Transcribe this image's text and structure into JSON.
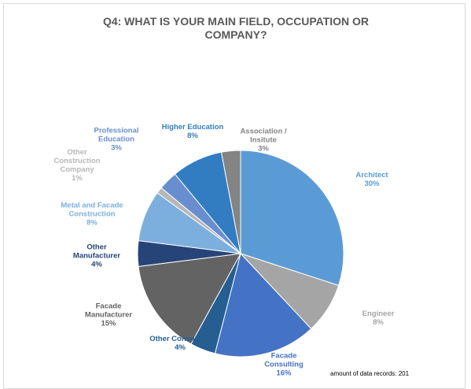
{
  "chart_data": {
    "type": "pie",
    "title": "Q4: WHAT IS YOUR MAIN FIELD, OCCUPATION OR COMPANY?",
    "categories": [
      "Architect",
      "Engineer",
      "Facade Consulting",
      "Other Consulting",
      "Facade Manufacturer",
      "Other Manufacturer",
      "Metal and Facade Construction",
      "Other Construction Company",
      "Professional Education",
      "Higher Education",
      "Association / Insitute"
    ],
    "values": [
      30,
      8,
      16,
      4,
      15,
      4,
      8,
      1,
      3,
      8,
      3
    ],
    "value_labels": [
      "30%",
      "8%",
      "16%",
      "4%",
      "15%",
      "4%",
      "8%",
      "1%",
      "3%",
      "8%",
      "3%"
    ],
    "colors": [
      "#5b9bd5",
      "#a5a5a5",
      "#4472c4",
      "#255e91",
      "#636363",
      "#264478",
      "#7cafdd",
      "#b7b7b7",
      "#698ed0",
      "#327dc2",
      "#848484"
    ],
    "note": "amount of data records: 201"
  }
}
